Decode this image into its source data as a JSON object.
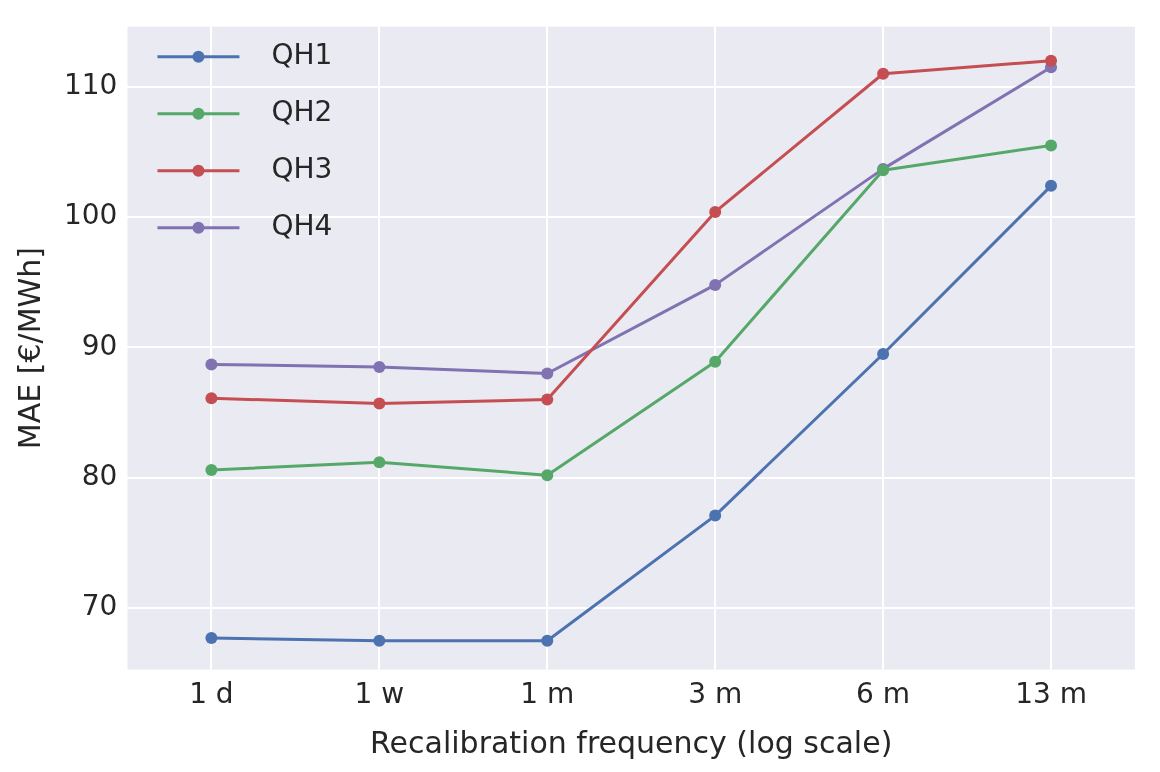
{
  "chart_data": {
    "type": "line",
    "xlabel": "Recalibration frequency (log scale)",
    "ylabel": "MAE [€/MWh]",
    "categories": [
      "1 d",
      "1 w",
      "1 m",
      "3 m",
      "6 m",
      "13 m"
    ],
    "ylim": [
      65.3,
      114.6
    ],
    "yticks": [
      70,
      80,
      90,
      100,
      110
    ],
    "grid": true,
    "legend": "top left",
    "marker": "circle",
    "line_style": "solid",
    "series": [
      {
        "name": "QH1",
        "color": "#4c72b0",
        "values": [
          67.7,
          67.5,
          67.5,
          77.1,
          89.5,
          102.4
        ]
      },
      {
        "name": "QH2",
        "color": "#55a868",
        "values": [
          80.6,
          81.2,
          80.2,
          88.9,
          103.6,
          105.5
        ]
      },
      {
        "name": "QH3",
        "color": "#c44e52",
        "values": [
          86.1,
          85.7,
          86.0,
          100.4,
          111.0,
          112.0
        ]
      },
      {
        "name": "QH4",
        "color": "#8172b2",
        "values": [
          88.7,
          88.5,
          88.0,
          94.8,
          103.7,
          111.5
        ]
      }
    ]
  }
}
